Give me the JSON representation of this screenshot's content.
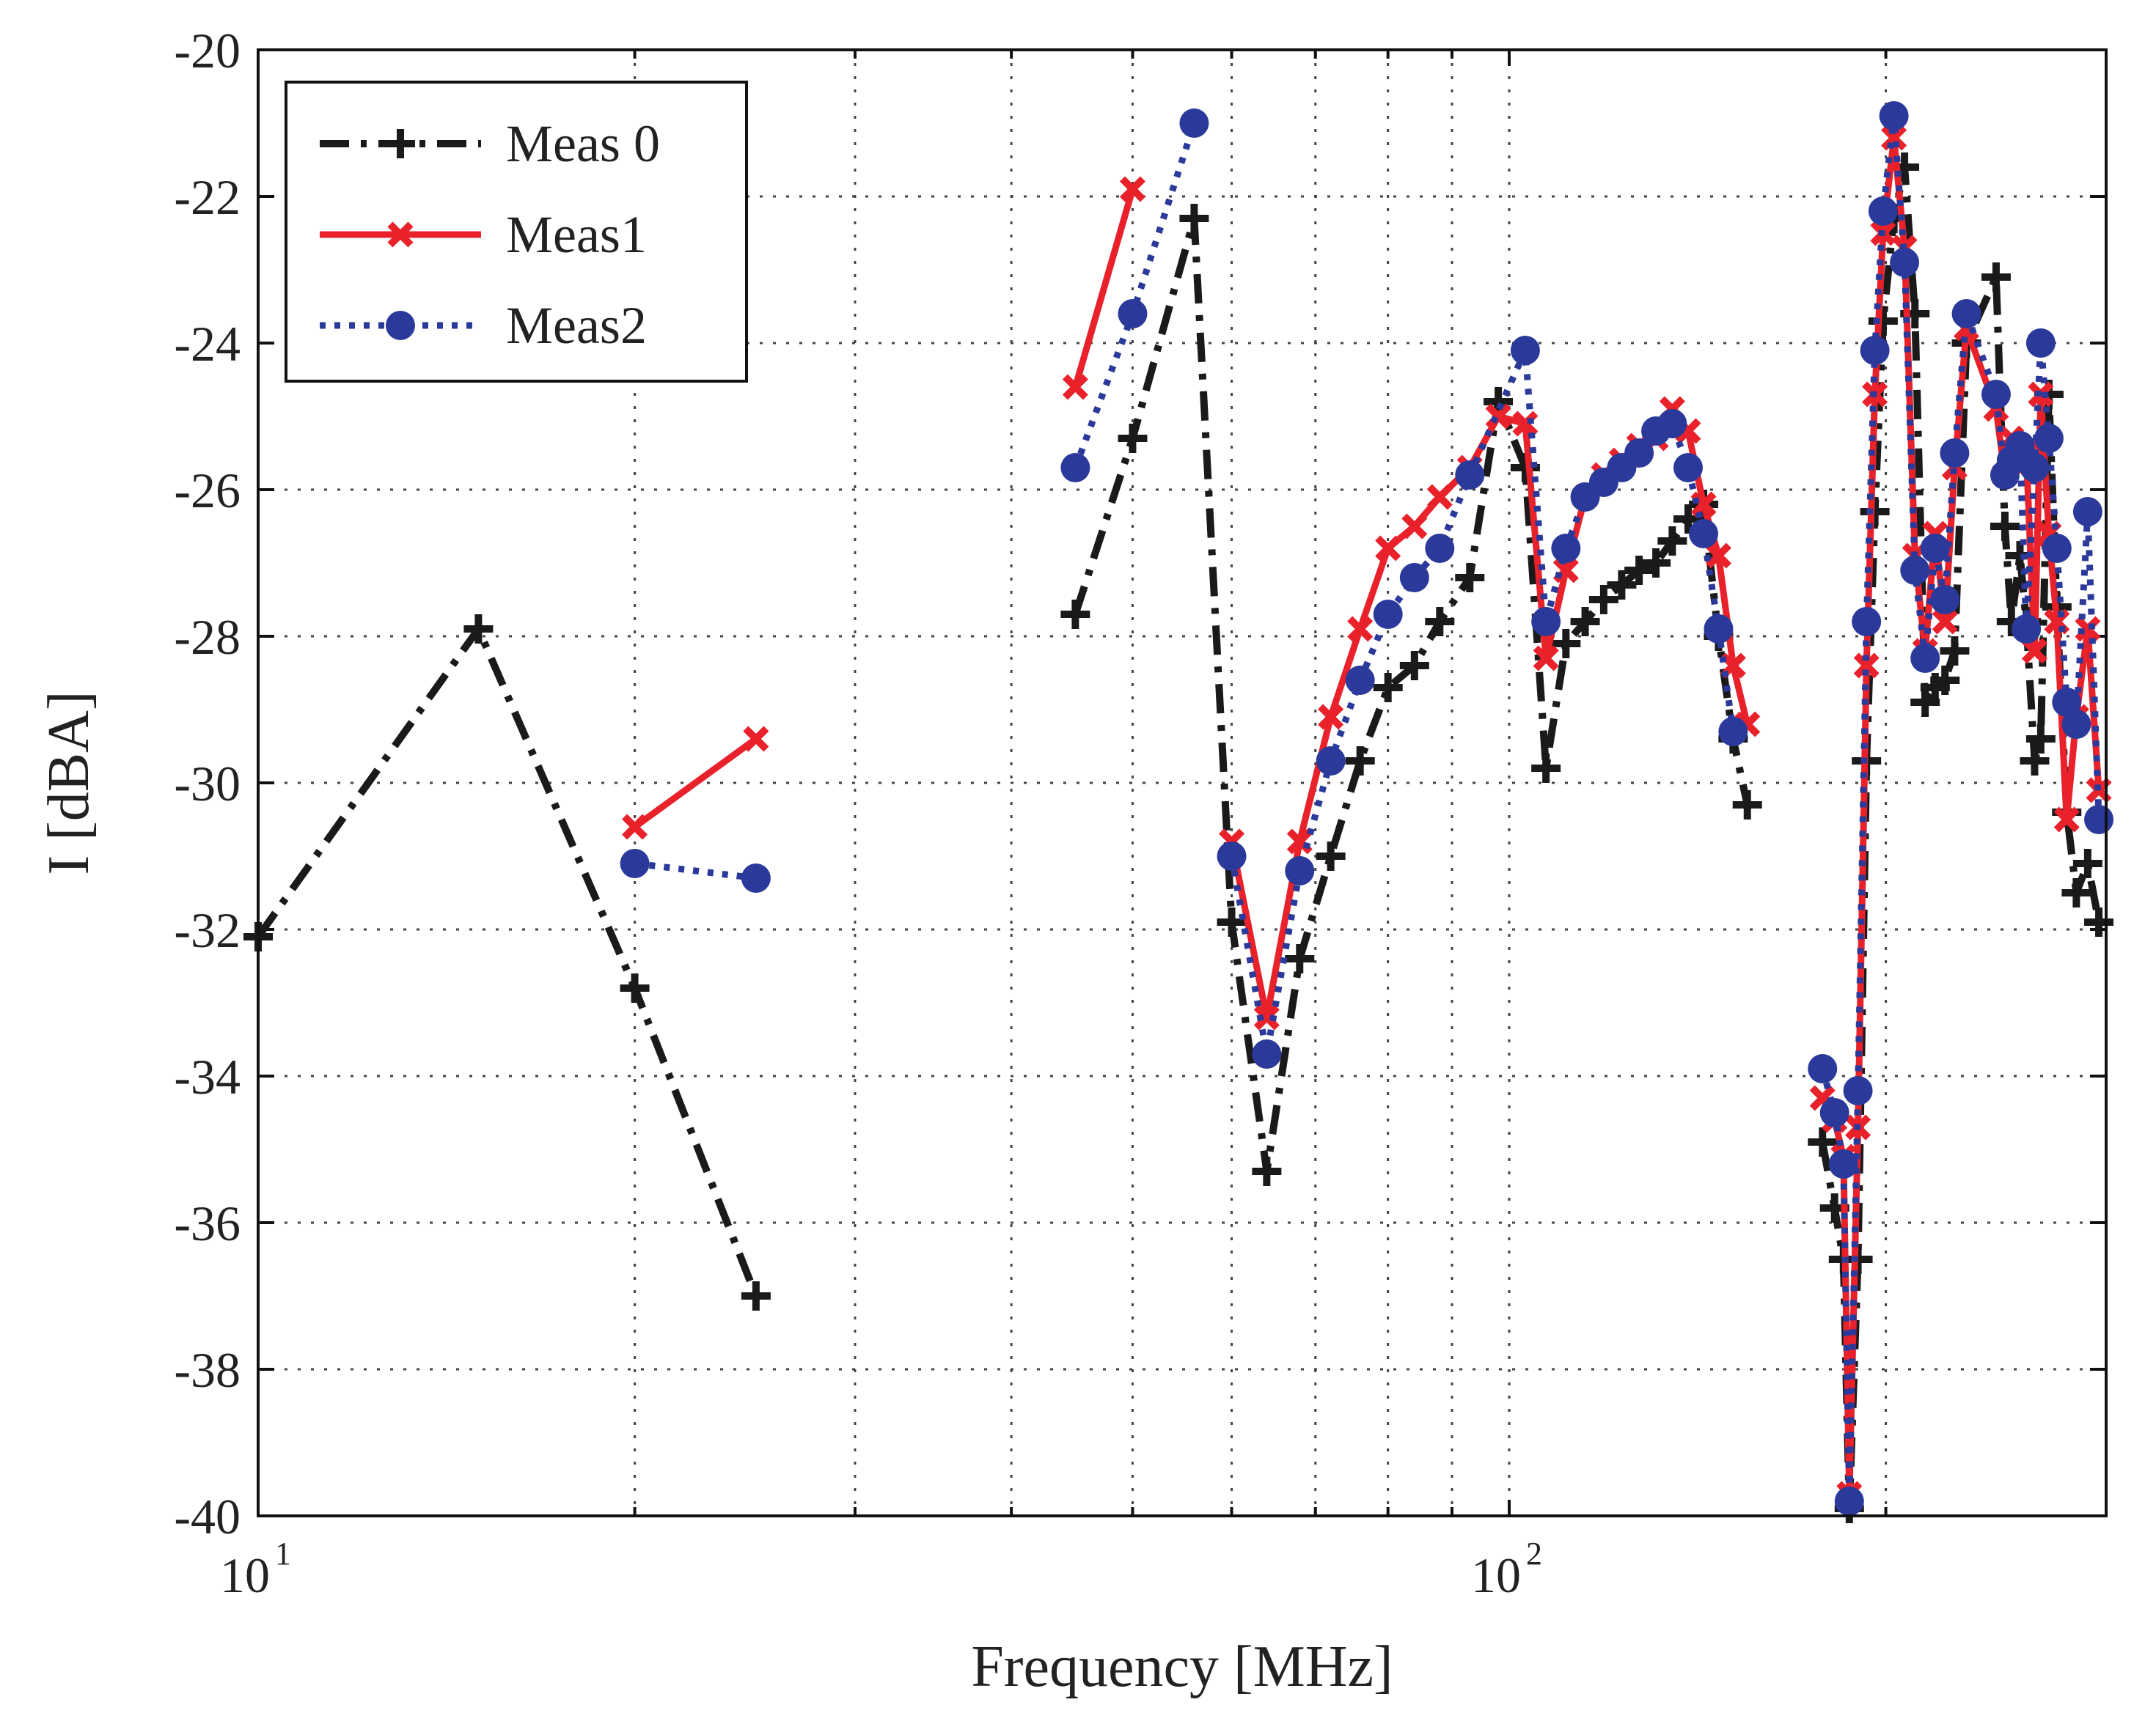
{
  "chart_data": {
    "type": "line",
    "xscale": "log",
    "xlabel": "Frequency [MHz]",
    "ylabel": "I [dBA]",
    "xlim": [
      10,
      300
    ],
    "ylim": [
      -40,
      -20
    ],
    "x_ticks": [
      {
        "value": 10,
        "base": "10",
        "exp": "1"
      },
      {
        "value": 100,
        "base": "10",
        "exp": "2"
      }
    ],
    "y_ticks": [
      -20,
      -22,
      -24,
      -26,
      -28,
      -30,
      -32,
      -34,
      -36,
      -38,
      -40
    ],
    "y_tick_labels": [
      "-20",
      "-22",
      "-24",
      "-26",
      "-28",
      "-30",
      "-32",
      "-34",
      "-36",
      "-38",
      "-40"
    ],
    "grid": true,
    "legend_position": "top-left",
    "colors": {
      "meas0": "#1a1a1a",
      "meas1": "#e8212b",
      "meas2": "#2b3a9a"
    },
    "series": [
      {
        "name": "Meas 0",
        "key": "meas0",
        "style": "dashdot",
        "marker": "plus",
        "segments": [
          [
            [
              10,
              -32.1
            ],
            [
              15,
              -27.9
            ],
            [
              20,
              -32.8
            ],
            [
              25,
              -37
            ]
          ],
          [
            [
              45,
              -27.7
            ],
            [
              50,
              -25.3
            ],
            [
              56,
              -22.3
            ],
            [
              60,
              -31.9
            ],
            [
              64,
              -35.3
            ],
            [
              68,
              -32.4
            ],
            [
              72,
              -31
            ],
            [
              76,
              -29.7
            ],
            [
              80,
              -28.7
            ],
            [
              84,
              -28.4
            ],
            [
              88,
              -27.8
            ],
            [
              93,
              -27.2
            ],
            [
              98,
              -24.8
            ],
            [
              103,
              -25.7
            ],
            [
              107,
              -29.8
            ],
            [
              111,
              -28.1
            ],
            [
              115,
              -27.8
            ],
            [
              119,
              -27.5
            ],
            [
              123,
              -27.3
            ],
            [
              127,
              -27.1
            ],
            [
              131,
              -27
            ],
            [
              135,
              -26.7
            ],
            [
              139,
              -26.4
            ],
            [
              143,
              -26.2
            ],
            [
              147,
              -28
            ],
            [
              151,
              -29.4
            ],
            [
              155,
              -30.3
            ]
          ],
          [
            [
              178,
              -34.9
            ],
            [
              182,
              -35.8
            ],
            [
              185,
              -36.5
            ],
            [
              187,
              -39.9
            ],
            [
              190,
              -36.5
            ],
            [
              193,
              -29.7
            ],
            [
              196,
              -26.3
            ],
            [
              199,
              -23.7
            ],
            [
              203,
              -22.3
            ],
            [
              207,
              -21.6
            ],
            [
              211,
              -23.6
            ],
            [
              215,
              -28.9
            ],
            [
              219,
              -28.7
            ],
            [
              223,
              -28.6
            ],
            [
              227,
              -28.2
            ],
            [
              232,
              -24
            ],
            [
              245,
              -23.1
            ],
            [
              249,
              -26.5
            ],
            [
              252,
              -27.8
            ],
            [
              256,
              -26.9
            ],
            [
              259,
              -27.8
            ],
            [
              263,
              -29.7
            ],
            [
              266,
              -29.4
            ],
            [
              270,
              -24.7
            ],
            [
              274,
              -27.6
            ],
            [
              279,
              -30.4
            ],
            [
              284,
              -31.5
            ],
            [
              290,
              -31.1
            ],
            [
              296,
              -31.9
            ]
          ]
        ]
      },
      {
        "name": "Meas1",
        "key": "meas1",
        "style": "solid",
        "marker": "x",
        "segments": [
          [
            [
              20,
              -30.6
            ],
            [
              25,
              -29.4
            ]
          ],
          [
            [
              45,
              -24.6
            ],
            [
              50,
              -21.9
            ]
          ],
          [
            [
              60,
              -30.8
            ],
            [
              64,
              -33.2
            ],
            [
              68,
              -30.8
            ],
            [
              72,
              -29.1
            ],
            [
              76,
              -27.9
            ],
            [
              80,
              -26.8
            ],
            [
              84,
              -26.5
            ],
            [
              88,
              -26.1
            ],
            [
              93,
              -25.7
            ],
            [
              98,
              -25
            ],
            [
              103,
              -25.1
            ],
            [
              107,
              -28.3
            ],
            [
              111,
              -27.1
            ],
            [
              115,
              -26.1
            ],
            [
              119,
              -25.8
            ],
            [
              123,
              -25.6
            ],
            [
              127,
              -25.4
            ],
            [
              131,
              -25.3
            ],
            [
              135,
              -24.9
            ],
            [
              139,
              -25.2
            ],
            [
              143,
              -26.2
            ],
            [
              147,
              -26.9
            ],
            [
              151,
              -28.4
            ],
            [
              155,
              -29.2
            ]
          ],
          [
            [
              178,
              -34.3
            ],
            [
              182,
              -34.6
            ],
            [
              185,
              -35.1
            ],
            [
              187,
              -39.7
            ],
            [
              190,
              -34.7
            ],
            [
              193,
              -28.4
            ],
            [
              196,
              -24.7
            ],
            [
              199,
              -22.5
            ],
            [
              203,
              -21.2
            ],
            [
              207,
              -22.7
            ],
            [
              211,
              -26.9
            ],
            [
              215,
              -28.2
            ],
            [
              219,
              -26.6
            ],
            [
              223,
              -27.8
            ],
            [
              227,
              -25.7
            ],
            [
              232,
              -23.8
            ],
            [
              245,
              -24.9
            ],
            [
              249,
              -25.8
            ],
            [
              252,
              -25.3
            ],
            [
              256,
              -25.7
            ],
            [
              259,
              -25.5
            ],
            [
              263,
              -28.2
            ],
            [
              266,
              -24.7
            ],
            [
              270,
              -26.6
            ],
            [
              274,
              -27.8
            ],
            [
              279,
              -30.5
            ],
            [
              284,
              -29.1
            ],
            [
              290,
              -27.9
            ],
            [
              296,
              -30.1
            ]
          ]
        ]
      },
      {
        "name": "Meas2",
        "key": "meas2",
        "style": "dotted",
        "marker": "circle",
        "segments": [
          [
            [
              20,
              -31.1
            ],
            [
              25,
              -31.3
            ]
          ],
          [
            [
              45,
              -25.7
            ],
            [
              50,
              -23.6
            ],
            [
              56,
              -21
            ]
          ],
          [
            [
              60,
              -31
            ],
            [
              64,
              -33.7
            ],
            [
              68,
              -31.2
            ],
            [
              72,
              -29.7
            ],
            [
              76,
              -28.6
            ],
            [
              80,
              -27.7
            ],
            [
              84,
              -27.2
            ],
            [
              88,
              -26.8
            ],
            [
              93,
              -25.8
            ],
            [
              103,
              -24.1
            ],
            [
              107,
              -27.8
            ],
            [
              111,
              -26.8
            ],
            [
              115,
              -26.1
            ],
            [
              119,
              -25.9
            ],
            [
              123,
              -25.7
            ],
            [
              127,
              -25.5
            ],
            [
              131,
              -25.2
            ],
            [
              135,
              -25.1
            ],
            [
              139,
              -25.7
            ],
            [
              143,
              -26.6
            ],
            [
              147,
              -27.9
            ],
            [
              151,
              -29.3
            ]
          ],
          [
            [
              178,
              -33.9
            ],
            [
              182,
              -34.5
            ],
            [
              185,
              -35.2
            ],
            [
              187,
              -39.8
            ],
            [
              190,
              -34.2
            ],
            [
              193,
              -27.8
            ],
            [
              196,
              -24.1
            ],
            [
              199,
              -22.2
            ],
            [
              203,
              -20.9
            ],
            [
              207,
              -22.9
            ],
            [
              211,
              -27.1
            ],
            [
              215,
              -28.3
            ],
            [
              219,
              -26.8
            ],
            [
              223,
              -27.5
            ],
            [
              227,
              -25.5
            ],
            [
              232,
              -23.6
            ],
            [
              245,
              -24.7
            ],
            [
              249,
              -25.8
            ],
            [
              252,
              -25.6
            ],
            [
              256,
              -25.4
            ],
            [
              259,
              -27.9
            ],
            [
              263,
              -25.7
            ],
            [
              266,
              -24
            ],
            [
              270,
              -25.3
            ],
            [
              274,
              -26.8
            ],
            [
              279,
              -28.9
            ],
            [
              284,
              -29.2
            ],
            [
              290,
              -26.3
            ],
            [
              296,
              -30.5
            ]
          ]
        ]
      }
    ]
  }
}
